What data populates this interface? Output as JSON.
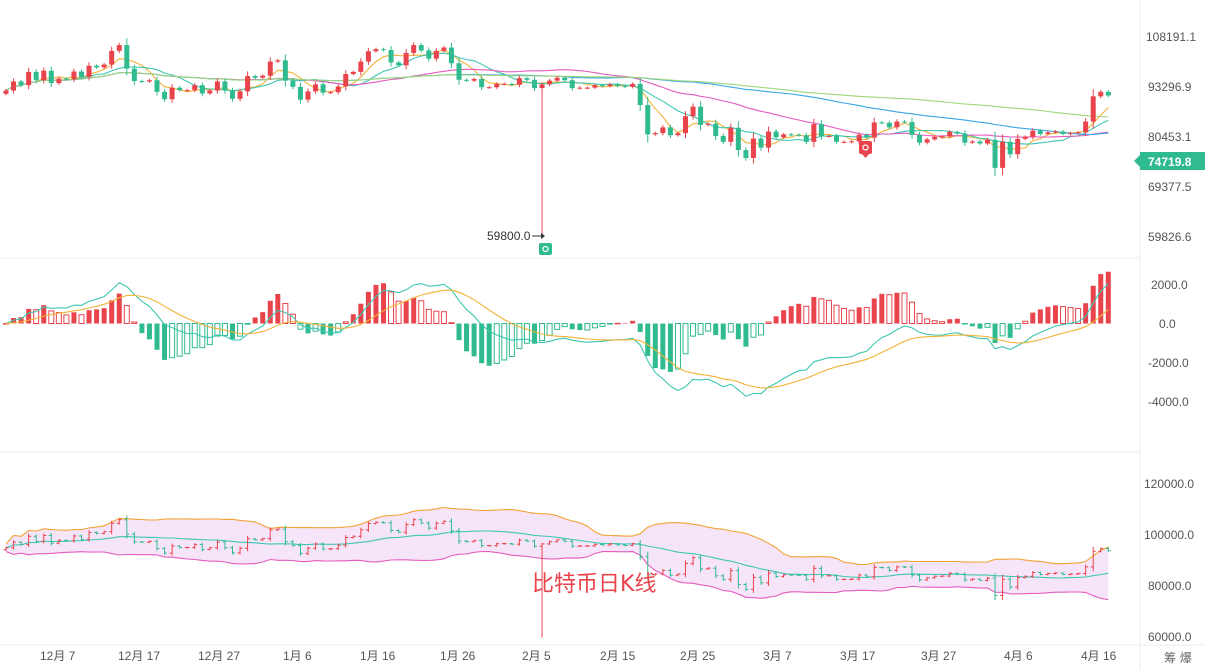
{
  "chart_data": {
    "type": "candlestick",
    "price_ticks": [
      "108191.1",
      "93296.9",
      "80453.1",
      "69377.5",
      "59826.6"
    ],
    "current_price": "74719.8",
    "low_marker_label": "59800.0",
    "macd_ticks": [
      "2000.0",
      "0.0",
      "-2000.0",
      "-4000.0"
    ],
    "boll_ticks": [
      "120000.0",
      "100000.0",
      "80000.0",
      "60000.0"
    ],
    "x_labels": [
      "12月 7",
      "12月 17",
      "12月 27",
      "1月 6",
      "1月 16",
      "1月 26",
      "2月 5",
      "2月 15",
      "2月 25",
      "3月 7",
      "3月 17",
      "3月 27",
      "4月 6",
      "4月 16"
    ],
    "watermark_text": "比特币日K线",
    "corner_text": "筹 爆",
    "close_series": [
      95000,
      97200,
      96300,
      99500,
      97500,
      99800,
      96800,
      97900,
      97700,
      99600,
      98300,
      101000,
      100600,
      101300,
      104600,
      106000,
      100300,
      97300,
      97200,
      97500,
      94700,
      92900,
      95700,
      95100,
      95100,
      96300,
      94300,
      95000,
      97200,
      95000,
      93000,
      94800,
      98500,
      98100,
      98600,
      102000,
      102300,
      97400,
      95900,
      92800,
      94800,
      96500,
      94500,
      94600,
      96000,
      99000,
      99500,
      102000,
      104500,
      105000,
      104800,
      101800,
      101100,
      104100,
      106000,
      104700,
      102700,
      104600,
      105400,
      101600,
      97600,
      97400,
      97800,
      95800,
      95800,
      96600,
      96600,
      96400,
      98000,
      97600,
      95600,
      96500,
      97400,
      98100,
      97500,
      95600,
      95700,
      95700,
      96300,
      96100,
      96500,
      96100,
      95900,
      96600,
      91500,
      84400,
      84700,
      86100,
      84200,
      84700,
      88800,
      91100,
      86700,
      87000,
      84000,
      82600,
      86000,
      80600,
      78700,
      83400,
      81200,
      85100,
      83700,
      84400,
      84300,
      84200,
      82600,
      86900,
      84000,
      84000,
      82600,
      82600,
      82700,
      84300,
      83600,
      87300,
      87200,
      86100,
      87500,
      87400,
      84300,
      82400,
      83200,
      83800,
      83900,
      85000,
      84600,
      82400,
      82700,
      82200,
      83100,
      76300,
      82600,
      79600,
      83300,
      83800,
      85300,
      84500,
      84900,
      85100,
      84500,
      84700,
      84900,
      87500,
      93600,
      94700,
      93800
    ]
  }
}
